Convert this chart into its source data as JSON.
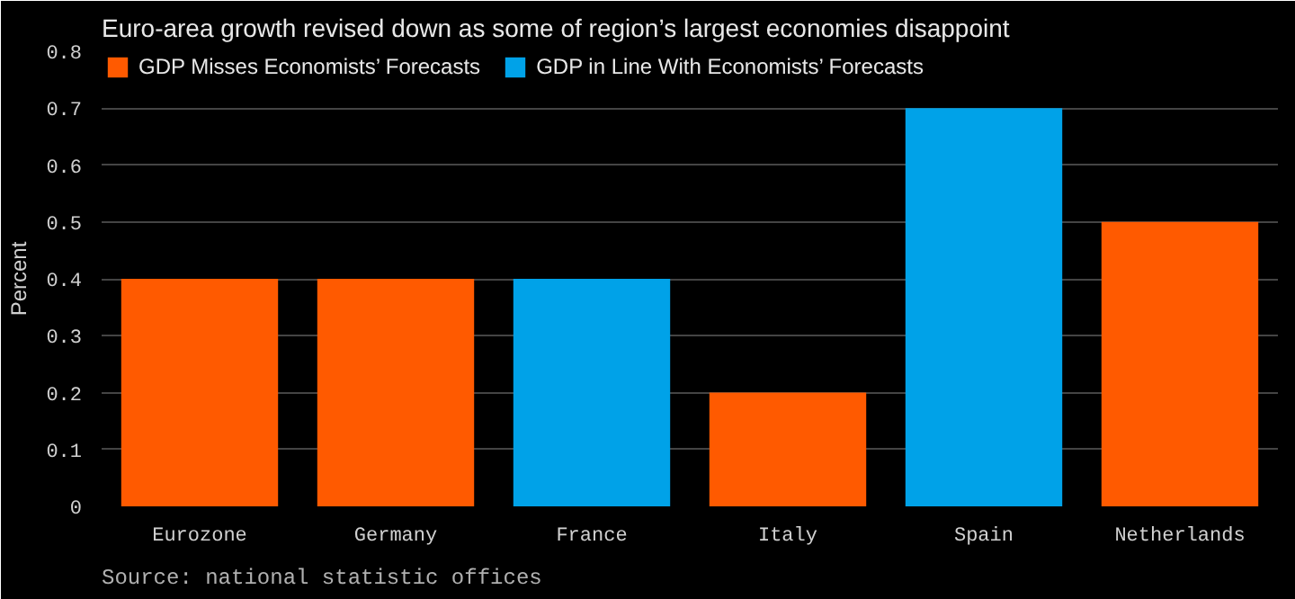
{
  "chart_data": {
    "type": "bar",
    "title": "Euro-area growth revised down as some of region’s largest economies disappoint",
    "ylabel": "Percent",
    "categories": [
      "Eurozone",
      "Germany",
      "France",
      "Italy",
      "Spain",
      "Netherlands"
    ],
    "series": [
      {
        "name": "GDP Misses Economists’ Forecasts",
        "color": "#ff5a00",
        "values": [
          0.4,
          0.4,
          null,
          0.2,
          null,
          0.5
        ]
      },
      {
        "name": "GDP in Line With Economists’ Forecasts",
        "color": "#00a2e8",
        "values": [
          null,
          null,
          0.4,
          null,
          0.7,
          null
        ]
      }
    ],
    "ylim": [
      0,
      0.8
    ],
    "yticks": [
      0,
      0.1,
      0.2,
      0.3,
      0.4,
      0.5,
      0.6,
      0.7,
      0.8
    ],
    "grid": "y",
    "legend": "top left",
    "annotations": [
      "Source: national statistic offices"
    ]
  }
}
